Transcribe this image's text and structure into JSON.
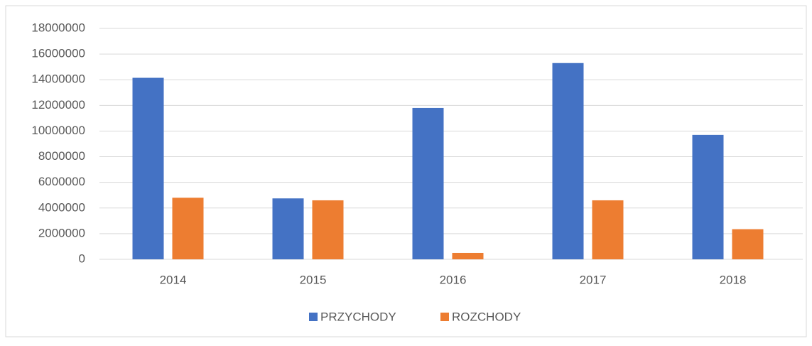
{
  "chart_data": {
    "type": "bar",
    "categories": [
      "2014",
      "2015",
      "2016",
      "2017",
      "2018"
    ],
    "series": [
      {
        "name": "PRZYCHODY",
        "color": "#4472c4",
        "values": [
          14150000,
          4750000,
          11800000,
          15300000,
          9700000
        ]
      },
      {
        "name": "ROZCHODY",
        "color": "#ed7d31",
        "values": [
          4800000,
          4600000,
          500000,
          4600000,
          2350000
        ]
      }
    ],
    "ylim": [
      0,
      18000000
    ],
    "yticks": [
      0,
      2000000,
      4000000,
      6000000,
      8000000,
      10000000,
      12000000,
      14000000,
      16000000,
      18000000
    ],
    "grid": true,
    "legend": "bottom"
  }
}
